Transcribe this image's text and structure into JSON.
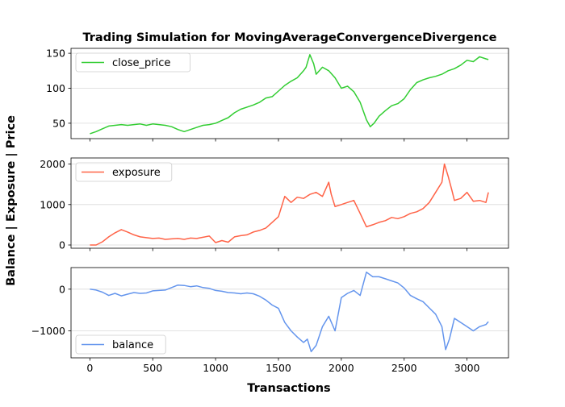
{
  "chart_data": {
    "type": "line",
    "title": "Trading Simulation for MovingAverageConvergenceDivergence",
    "xlabel": "Transactions",
    "ylabel": "Balance | Exposure | Price",
    "xlim": [
      -150,
      3330
    ],
    "x_ticks": [
      0,
      500,
      1000,
      1500,
      2000,
      2500,
      3000
    ],
    "grid": "horizontal",
    "panels": [
      {
        "name": "close_price",
        "color": "#32cd32",
        "legend_position": "upper-left",
        "ylim": [
          28,
          157
        ],
        "y_ticks": [
          50,
          100,
          150
        ],
        "x": [
          0,
          50,
          100,
          150,
          200,
          250,
          300,
          350,
          400,
          450,
          500,
          550,
          600,
          650,
          700,
          750,
          800,
          850,
          900,
          950,
          1000,
          1050,
          1100,
          1150,
          1200,
          1250,
          1300,
          1350,
          1400,
          1450,
          1500,
          1550,
          1600,
          1650,
          1700,
          1720,
          1750,
          1780,
          1800,
          1850,
          1900,
          1950,
          2000,
          2050,
          2100,
          2150,
          2200,
          2230,
          2260,
          2300,
          2350,
          2400,
          2450,
          2500,
          2550,
          2600,
          2650,
          2700,
          2750,
          2800,
          2850,
          2900,
          2950,
          3000,
          3050,
          3100,
          3150,
          3170
        ],
        "values": [
          35,
          38,
          42,
          46,
          47,
          48,
          47,
          48,
          49,
          47,
          49,
          48,
          47,
          45,
          41,
          38,
          41,
          44,
          47,
          48,
          50,
          54,
          58,
          65,
          70,
          73,
          76,
          80,
          86,
          88,
          96,
          104,
          110,
          115,
          125,
          130,
          148,
          135,
          120,
          130,
          125,
          115,
          100,
          103,
          95,
          80,
          55,
          45,
          50,
          60,
          68,
          75,
          78,
          85,
          98,
          108,
          112,
          115,
          117,
          120,
          125,
          128,
          133,
          140,
          138,
          145,
          142,
          141
        ]
      },
      {
        "name": "exposure",
        "color": "#ff6347",
        "legend_position": "upper-left",
        "ylim": [
          -80,
          2150
        ],
        "y_ticks": [
          0,
          1000,
          2000
        ],
        "x": [
          0,
          50,
          100,
          150,
          200,
          250,
          300,
          350,
          400,
          450,
          500,
          550,
          600,
          650,
          700,
          750,
          800,
          850,
          900,
          950,
          1000,
          1050,
          1100,
          1150,
          1200,
          1250,
          1300,
          1350,
          1400,
          1450,
          1500,
          1550,
          1600,
          1650,
          1700,
          1750,
          1800,
          1850,
          1900,
          1920,
          1950,
          2000,
          2050,
          2100,
          2150,
          2200,
          2250,
          2300,
          2350,
          2400,
          2450,
          2500,
          2550,
          2600,
          2650,
          2700,
          2750,
          2800,
          2820,
          2850,
          2880,
          2900,
          2950,
          3000,
          3050,
          3100,
          3150,
          3170
        ],
        "values": [
          0,
          0,
          80,
          200,
          300,
          380,
          320,
          250,
          200,
          180,
          160,
          170,
          140,
          150,
          160,
          140,
          170,
          160,
          190,
          220,
          60,
          110,
          70,
          200,
          230,
          250,
          320,
          360,
          420,
          560,
          700,
          1200,
          1050,
          1180,
          1150,
          1250,
          1300,
          1200,
          1550,
          1250,
          950,
          1000,
          1050,
          1100,
          780,
          450,
          500,
          560,
          600,
          680,
          650,
          700,
          780,
          820,
          900,
          1050,
          1300,
          1550,
          2000,
          1700,
          1350,
          1100,
          1150,
          1300,
          1080,
          1100,
          1050,
          1300
        ]
      },
      {
        "name": "balance",
        "color": "#6495ed",
        "legend_position": "lower-left",
        "ylim": [
          -1650,
          520
        ],
        "y_ticks": [
          -1000,
          0
        ],
        "x": [
          0,
          50,
          100,
          150,
          200,
          250,
          300,
          350,
          400,
          450,
          500,
          550,
          600,
          650,
          700,
          750,
          800,
          850,
          900,
          950,
          1000,
          1050,
          1100,
          1150,
          1200,
          1250,
          1300,
          1350,
          1400,
          1450,
          1500,
          1550,
          1600,
          1650,
          1700,
          1730,
          1760,
          1800,
          1850,
          1900,
          1950,
          2000,
          2050,
          2100,
          2150,
          2200,
          2250,
          2300,
          2350,
          2400,
          2450,
          2500,
          2550,
          2600,
          2650,
          2700,
          2750,
          2800,
          2830,
          2860,
          2900,
          2950,
          3000,
          3050,
          3100,
          3150,
          3170
        ],
        "values": [
          0,
          -20,
          -70,
          -150,
          -100,
          -160,
          -120,
          -80,
          -100,
          -90,
          -40,
          -30,
          -20,
          40,
          100,
          90,
          60,
          80,
          40,
          20,
          -30,
          -50,
          -80,
          -90,
          -110,
          -90,
          -110,
          -170,
          -260,
          -380,
          -460,
          -800,
          -1000,
          -1150,
          -1280,
          -1200,
          -1500,
          -1350,
          -900,
          -650,
          -1000,
          -200,
          -100,
          -30,
          -150,
          410,
          300,
          300,
          250,
          200,
          150,
          30,
          -150,
          -230,
          -300,
          -450,
          -600,
          -900,
          -1450,
          -1200,
          -700,
          -800,
          -900,
          -1000,
          -900,
          -850,
          -780
        ]
      }
    ]
  }
}
